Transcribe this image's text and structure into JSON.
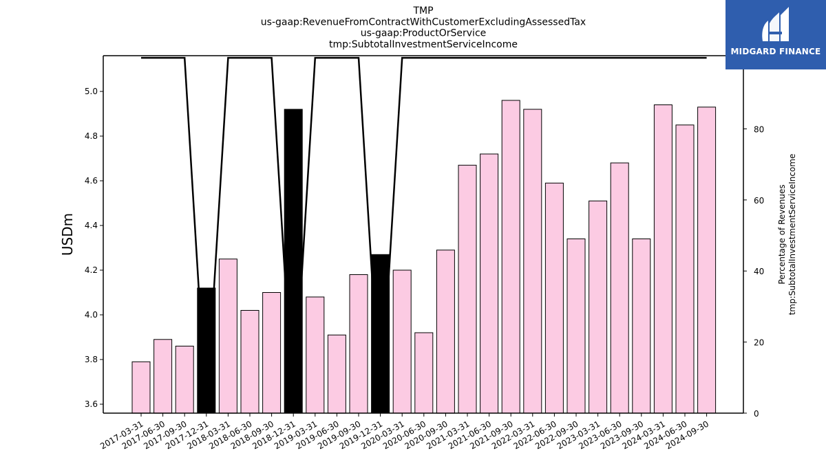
{
  "chart_data": {
    "type": "bar",
    "title_lines": [
      "TMP",
      "us-gaap:RevenueFromContractWithCustomerExcludingAssessedTax",
      "us-gaap:ProductOrService",
      "tmp:SubtotalInvestmentServiceIncome"
    ],
    "ylabel": "USDm",
    "ylabel_right_lines": [
      "Percentage of Revenues",
      "tmp:SubtotalInvestmentServiceIncome"
    ],
    "categories": [
      "2017-03-31",
      "2017-06-30",
      "2017-09-30",
      "2017-12-31",
      "2018-03-31",
      "2018-06-30",
      "2018-09-30",
      "2018-12-31",
      "2019-03-31",
      "2019-06-30",
      "2019-09-30",
      "2019-12-31",
      "2020-03-31",
      "2020-06-30",
      "2020-09-30",
      "2021-03-31",
      "2021-06-30",
      "2021-09-30",
      "2022-03-31",
      "2022-06-30",
      "2022-09-30",
      "2023-03-31",
      "2023-06-30",
      "2023-09-30",
      "2024-03-31",
      "2024-06-30",
      "2024-09-30"
    ],
    "values": [
      3.79,
      3.89,
      3.86,
      4.12,
      4.25,
      4.02,
      4.1,
      4.92,
      4.08,
      3.91,
      4.18,
      4.27,
      4.2,
      3.92,
      4.29,
      4.67,
      4.72,
      4.96,
      4.92,
      4.59,
      4.34,
      4.51,
      4.68,
      4.34,
      4.94,
      4.85,
      4.93
    ],
    "highlight": [
      false,
      false,
      false,
      true,
      false,
      false,
      false,
      true,
      false,
      false,
      false,
      true,
      false,
      false,
      false,
      false,
      false,
      false,
      false,
      false,
      false,
      false,
      false,
      false,
      false,
      false,
      false
    ],
    "percentage": [
      100,
      100,
      100,
      0,
      100,
      100,
      100,
      0,
      100,
      100,
      100,
      0,
      100,
      100,
      100,
      100,
      100,
      100,
      100,
      100,
      100,
      100,
      100,
      100,
      100,
      100,
      100
    ],
    "ylim": [
      3.56,
      5.16
    ],
    "yticks": [
      3.6,
      3.8,
      4.0,
      4.2,
      4.4,
      4.6,
      4.8,
      5.0
    ],
    "ylim_right": [
      0,
      100.6
    ],
    "yticks_right": [
      0,
      20,
      40,
      60,
      80,
      100
    ],
    "colors": {
      "bar": "#fccbe3",
      "highlight_bar": "#000000",
      "line": "#000000"
    }
  },
  "logo": {
    "text": "MIDGARD FINANCE",
    "background": "#2f5eae"
  }
}
